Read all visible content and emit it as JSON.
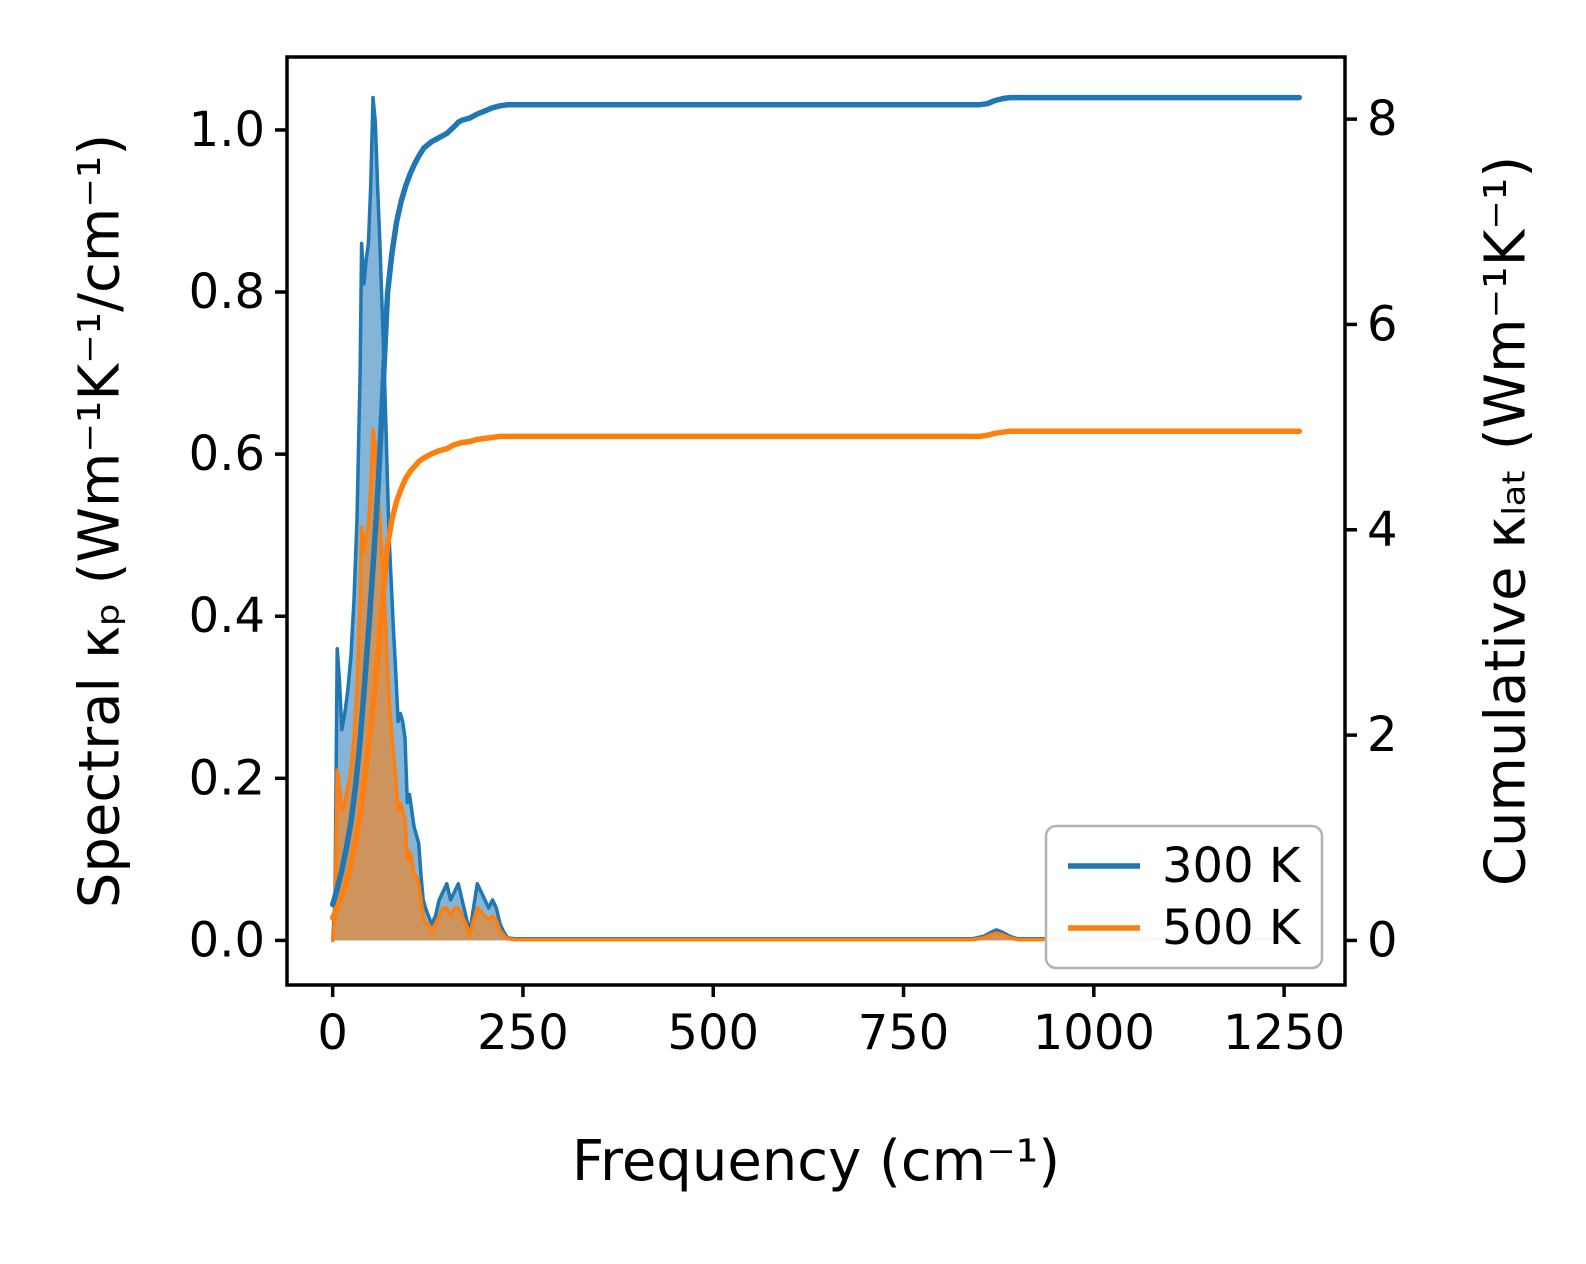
{
  "chart_data": {
    "type": "line",
    "title": "",
    "xlabel": "Frequency (cm⁻¹)",
    "ylabel_left": "Spectral κₚ (Wm⁻¹K⁻¹/cm⁻¹)",
    "ylabel_right": "Cumulative κₗₐₜ (Wm⁻¹K⁻¹)",
    "xlim": [
      -60,
      1330
    ],
    "ylim_left": [
      -0.055,
      1.09
    ],
    "ylim_right": [
      -0.434,
      8.605
    ],
    "grid": false,
    "xticks": {
      "values": [
        0,
        250,
        500,
        750,
        1000,
        1250
      ],
      "labels": [
        "0",
        "250",
        "500",
        "750",
        "1000",
        "1250"
      ]
    },
    "yticks_left": {
      "values": [
        0,
        0.2,
        0.4,
        0.6,
        0.8,
        1.0
      ],
      "labels": [
        "0.0",
        "0.2",
        "0.4",
        "0.6",
        "0.8",
        "1.0"
      ]
    },
    "yticks_right": {
      "values": [
        0,
        2,
        4,
        6,
        8
      ],
      "labels": [
        "0",
        "2",
        "4",
        "6",
        "8"
      ]
    },
    "colors": {
      "temp_300K": "#1f77b4",
      "temp_500K": "#ff7f0e"
    },
    "legend": {
      "position": "lower right",
      "entries": [
        {
          "label": "300 K",
          "color": "#1f77b4"
        },
        {
          "label": "500 K",
          "color": "#ff7f0e"
        }
      ]
    },
    "series": [
      {
        "id": "spectral-300k",
        "name": "300 K",
        "axis": "left",
        "kind": "area",
        "color": "#1f77b4",
        "fill_opacity": 0.55,
        "points": [
          [
            0,
            0.0
          ],
          [
            3,
            0.05
          ],
          [
            6,
            0.36
          ],
          [
            9,
            0.32
          ],
          [
            12,
            0.26
          ],
          [
            16,
            0.28
          ],
          [
            20,
            0.31
          ],
          [
            24,
            0.35
          ],
          [
            28,
            0.42
          ],
          [
            32,
            0.52
          ],
          [
            36,
            0.7
          ],
          [
            38,
            0.86
          ],
          [
            41,
            0.81
          ],
          [
            44,
            0.84
          ],
          [
            47,
            0.86
          ],
          [
            50,
            0.93
          ],
          [
            53,
            1.04
          ],
          [
            56,
            1.01
          ],
          [
            59,
            0.93
          ],
          [
            62,
            0.86
          ],
          [
            65,
            0.78
          ],
          [
            68,
            0.7
          ],
          [
            71,
            0.6
          ],
          [
            74,
            0.5
          ],
          [
            77,
            0.44
          ],
          [
            80,
            0.38
          ],
          [
            83,
            0.33
          ],
          [
            86,
            0.27
          ],
          [
            89,
            0.28
          ],
          [
            92,
            0.27
          ],
          [
            95,
            0.25
          ],
          [
            98,
            0.17
          ],
          [
            101,
            0.18
          ],
          [
            104,
            0.16
          ],
          [
            107,
            0.14
          ],
          [
            110,
            0.13
          ],
          [
            113,
            0.12
          ],
          [
            116,
            0.08
          ],
          [
            119,
            0.05
          ],
          [
            122,
            0.04
          ],
          [
            126,
            0.03
          ],
          [
            130,
            0.02
          ],
          [
            135,
            0.03
          ],
          [
            140,
            0.05
          ],
          [
            145,
            0.06
          ],
          [
            150,
            0.07
          ],
          [
            155,
            0.05
          ],
          [
            160,
            0.06
          ],
          [
            165,
            0.07
          ],
          [
            170,
            0.05
          ],
          [
            175,
            0.03
          ],
          [
            180,
            0.01
          ],
          [
            185,
            0.04
          ],
          [
            190,
            0.07
          ],
          [
            195,
            0.06
          ],
          [
            200,
            0.05
          ],
          [
            205,
            0.04
          ],
          [
            210,
            0.05
          ],
          [
            215,
            0.04
          ],
          [
            220,
            0.02
          ],
          [
            225,
            0.01
          ],
          [
            230,
            0.003
          ],
          [
            240,
            0.002
          ],
          [
            300,
            0.002
          ],
          [
            400,
            0.002
          ],
          [
            500,
            0.002
          ],
          [
            600,
            0.002
          ],
          [
            700,
            0.002
          ],
          [
            800,
            0.002
          ],
          [
            840,
            0.002
          ],
          [
            855,
            0.005
          ],
          [
            865,
            0.01
          ],
          [
            872,
            0.013
          ],
          [
            880,
            0.01
          ],
          [
            890,
            0.005
          ],
          [
            900,
            0.002
          ],
          [
            1000,
            0.002
          ],
          [
            1100,
            0.002
          ],
          [
            1270,
            0.002
          ]
        ]
      },
      {
        "id": "spectral-500k",
        "name": "500 K",
        "axis": "left",
        "kind": "area",
        "color": "#ff7f0e",
        "fill_opacity": 0.6,
        "points": [
          [
            0,
            0.0
          ],
          [
            3,
            0.03
          ],
          [
            6,
            0.21
          ],
          [
            9,
            0.19
          ],
          [
            12,
            0.16
          ],
          [
            16,
            0.17
          ],
          [
            20,
            0.19
          ],
          [
            24,
            0.21
          ],
          [
            28,
            0.25
          ],
          [
            32,
            0.31
          ],
          [
            36,
            0.42
          ],
          [
            38,
            0.51
          ],
          [
            41,
            0.48
          ],
          [
            44,
            0.5
          ],
          [
            47,
            0.51
          ],
          [
            50,
            0.56
          ],
          [
            53,
            0.63
          ],
          [
            56,
            0.61
          ],
          [
            59,
            0.56
          ],
          [
            62,
            0.52
          ],
          [
            65,
            0.47
          ],
          [
            68,
            0.42
          ],
          [
            71,
            0.36
          ],
          [
            74,
            0.3
          ],
          [
            77,
            0.26
          ],
          [
            80,
            0.23
          ],
          [
            83,
            0.2
          ],
          [
            86,
            0.16
          ],
          [
            89,
            0.17
          ],
          [
            92,
            0.16
          ],
          [
            95,
            0.15
          ],
          [
            98,
            0.1
          ],
          [
            101,
            0.11
          ],
          [
            104,
            0.1
          ],
          [
            107,
            0.08
          ],
          [
            110,
            0.08
          ],
          [
            113,
            0.07
          ],
          [
            116,
            0.05
          ],
          [
            119,
            0.03
          ],
          [
            122,
            0.02
          ],
          [
            126,
            0.02
          ],
          [
            130,
            0.01
          ],
          [
            135,
            0.02
          ],
          [
            140,
            0.03
          ],
          [
            145,
            0.04
          ],
          [
            150,
            0.04
          ],
          [
            155,
            0.03
          ],
          [
            160,
            0.04
          ],
          [
            165,
            0.04
          ],
          [
            170,
            0.03
          ],
          [
            175,
            0.02
          ],
          [
            180,
            0.006
          ],
          [
            185,
            0.025
          ],
          [
            190,
            0.04
          ],
          [
            195,
            0.035
          ],
          [
            200,
            0.03
          ],
          [
            205,
            0.025
          ],
          [
            210,
            0.03
          ],
          [
            215,
            0.025
          ],
          [
            220,
            0.012
          ],
          [
            225,
            0.006
          ],
          [
            230,
            0.002
          ],
          [
            240,
            0.001
          ],
          [
            300,
            0.001
          ],
          [
            500,
            0.001
          ],
          [
            700,
            0.001
          ],
          [
            840,
            0.001
          ],
          [
            855,
            0.003
          ],
          [
            865,
            0.007
          ],
          [
            872,
            0.009
          ],
          [
            880,
            0.007
          ],
          [
            890,
            0.003
          ],
          [
            900,
            0.001
          ],
          [
            1000,
            0.001
          ],
          [
            1270,
            0.001
          ]
        ]
      },
      {
        "id": "cumulative-300k",
        "name": "300 K",
        "axis": "right",
        "kind": "line",
        "color": "#1f77b4",
        "points": [
          [
            0,
            0.35
          ],
          [
            6,
            0.5
          ],
          [
            12,
            0.68
          ],
          [
            18,
            0.9
          ],
          [
            24,
            1.15
          ],
          [
            30,
            1.5
          ],
          [
            36,
            1.95
          ],
          [
            42,
            2.5
          ],
          [
            48,
            3.1
          ],
          [
            54,
            3.75
          ],
          [
            60,
            4.45
          ],
          [
            66,
            5.35
          ],
          [
            72,
            6.3
          ],
          [
            78,
            6.7
          ],
          [
            84,
            7.0
          ],
          [
            90,
            7.2
          ],
          [
            96,
            7.35
          ],
          [
            102,
            7.47
          ],
          [
            108,
            7.57
          ],
          [
            114,
            7.65
          ],
          [
            120,
            7.72
          ],
          [
            130,
            7.78
          ],
          [
            140,
            7.82
          ],
          [
            150,
            7.86
          ],
          [
            160,
            7.93
          ],
          [
            165,
            7.97
          ],
          [
            170,
            7.99
          ],
          [
            180,
            8.01
          ],
          [
            190,
            8.05
          ],
          [
            200,
            8.08
          ],
          [
            210,
            8.11
          ],
          [
            220,
            8.13
          ],
          [
            230,
            8.14
          ],
          [
            250,
            8.14
          ],
          [
            300,
            8.14
          ],
          [
            400,
            8.14
          ],
          [
            500,
            8.14
          ],
          [
            600,
            8.14
          ],
          [
            700,
            8.14
          ],
          [
            800,
            8.14
          ],
          [
            850,
            8.14
          ],
          [
            860,
            8.15
          ],
          [
            870,
            8.18
          ],
          [
            880,
            8.2
          ],
          [
            890,
            8.21
          ],
          [
            1000,
            8.21
          ],
          [
            1100,
            8.21
          ],
          [
            1270,
            8.21
          ]
        ]
      },
      {
        "id": "cumulative-500k",
        "name": "500 K",
        "axis": "right",
        "kind": "line",
        "color": "#ff7f0e",
        "points": [
          [
            0,
            0.22
          ],
          [
            6,
            0.32
          ],
          [
            12,
            0.43
          ],
          [
            18,
            0.57
          ],
          [
            24,
            0.73
          ],
          [
            30,
            0.95
          ],
          [
            36,
            1.22
          ],
          [
            42,
            1.55
          ],
          [
            48,
            1.95
          ],
          [
            54,
            2.35
          ],
          [
            60,
            2.8
          ],
          [
            66,
            3.35
          ],
          [
            72,
            3.85
          ],
          [
            78,
            4.1
          ],
          [
            84,
            4.28
          ],
          [
            90,
            4.4
          ],
          [
            96,
            4.5
          ],
          [
            102,
            4.57
          ],
          [
            108,
            4.62
          ],
          [
            114,
            4.67
          ],
          [
            120,
            4.7
          ],
          [
            130,
            4.74
          ],
          [
            140,
            4.77
          ],
          [
            150,
            4.79
          ],
          [
            160,
            4.83
          ],
          [
            170,
            4.85
          ],
          [
            180,
            4.86
          ],
          [
            190,
            4.88
          ],
          [
            200,
            4.89
          ],
          [
            210,
            4.9
          ],
          [
            220,
            4.91
          ],
          [
            230,
            4.91
          ],
          [
            300,
            4.91
          ],
          [
            500,
            4.91
          ],
          [
            700,
            4.91
          ],
          [
            800,
            4.91
          ],
          [
            850,
            4.91
          ],
          [
            860,
            4.92
          ],
          [
            870,
            4.94
          ],
          [
            880,
            4.95
          ],
          [
            890,
            4.96
          ],
          [
            1000,
            4.96
          ],
          [
            1270,
            4.96
          ]
        ]
      }
    ]
  }
}
